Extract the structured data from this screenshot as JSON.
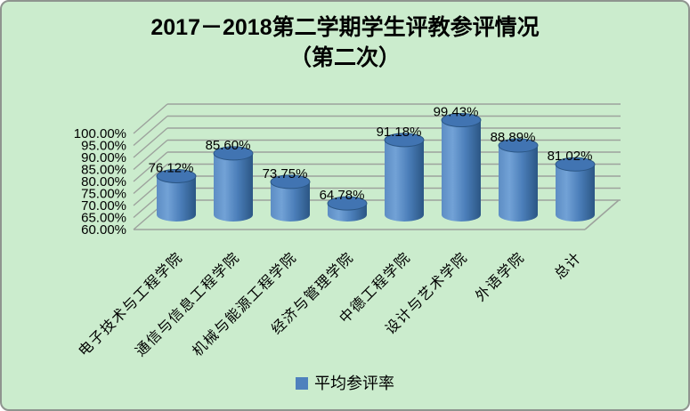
{
  "window": {
    "background": "#cbeccd",
    "border_color": "#8f948f"
  },
  "title": {
    "line1": "2017－2018第二学期学生评教参评情况",
    "line2": "（第二次）"
  },
  "legend": {
    "label": "平均参评率",
    "marker_color": "#4f81bd"
  },
  "chart_data": {
    "type": "bar",
    "style": "3d-cylinder",
    "title": "2017－2018第二学期学生评教参评情况（第二次）",
    "categories": [
      "电子技术与工程学院",
      "通信与信息工程学院",
      "机械与能源工程学院",
      "经济与管理学院",
      "中德工程学院",
      "设计与艺术学院",
      "外语学院",
      "总计"
    ],
    "series": [
      {
        "name": "平均参评率",
        "values": [
          76.12,
          85.6,
          73.75,
          64.78,
          91.18,
          99.43,
          88.89,
          81.02
        ]
      }
    ],
    "value_labels": [
      "76.12%",
      "85.60%",
      "73.75%",
      "64.78%",
      "91.18%",
      "99.43%",
      "88.89%",
      "81.02%"
    ],
    "y_axis": {
      "min": 60,
      "max": 100,
      "step": 5,
      "tick_labels": [
        "100.00%",
        "95.00%",
        "90.00%",
        "85.00%",
        "80.00%",
        "75.00%",
        "70.00%",
        "65.00%",
        "60.00%"
      ]
    },
    "grid": true,
    "legend_position": "bottom",
    "colors": {
      "gridline": "#9da29d",
      "bar_body_left": "#5d8dc4",
      "bar_body_light": "#72a2d6",
      "bar_body_mid": "#4a7db8",
      "bar_body_dark": "#2b5684",
      "bar_top": "#4174b2",
      "bar_top_edge": "#2b5684",
      "label_text": "#000000"
    }
  }
}
